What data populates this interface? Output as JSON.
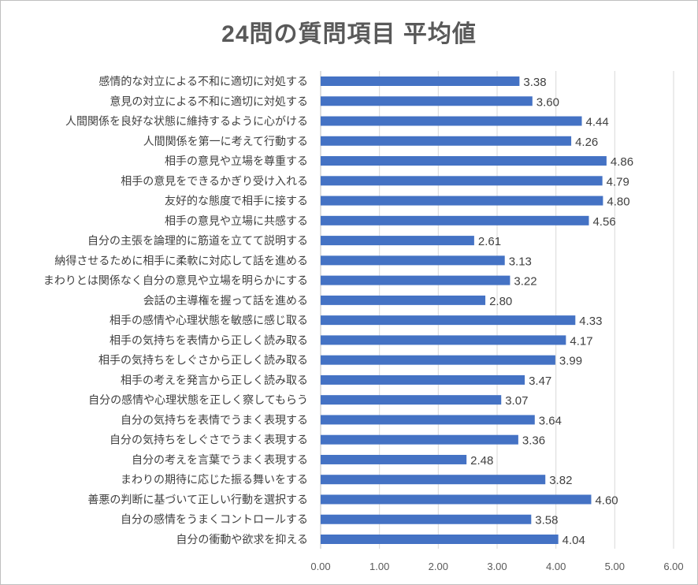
{
  "chart_data": {
    "type": "bar",
    "orientation": "horizontal",
    "title": "24問の質問項目 平均値",
    "xlabel": "",
    "ylabel": "",
    "xlim": [
      0,
      6
    ],
    "xticks": [
      "0.00",
      "1.00",
      "2.00",
      "3.00",
      "4.00",
      "5.00",
      "6.00"
    ],
    "grid": true,
    "bar_color": "#4472C4",
    "categories": [
      "感情的な対立による不和に適切に対処する",
      "意見の対立による不和に適切に対処する",
      "人間関係を良好な状態に維持するように心がける",
      "人間関係を第一に考えて行動する",
      "相手の意見や立場を尊重する",
      "相手の意見をできるかぎり受け入れる",
      "友好的な態度で相手に接する",
      "相手の意見や立場に共感する",
      "自分の主張を論理的に筋道を立てて説明する",
      "納得させるために相手に柔軟に対応して話を進める",
      "まわりとは関係なく自分の意見や立場を明らかにする",
      "会話の主導権を握って話を進める",
      "相手の感情や心理状態を敏感に感じ取る",
      "相手の気持ちを表情から正しく読み取る",
      "相手の気持ちをしぐさから正しく読み取る",
      "相手の考えを発言から正しく読み取る",
      "自分の感情や心理状態を正しく察してもらう",
      "自分の気持ちを表情でうまく表現する",
      "自分の気持ちをしぐさでうまく表現する",
      "自分の考えを言葉でうまく表現する",
      "まわりの期待に応じた振る舞いをする",
      "善悪の判断に基づいて正しい行動を選択する",
      "自分の感情をうまくコントロールする",
      "自分の衝動や欲求を抑える"
    ],
    "values": [
      3.38,
      3.6,
      4.44,
      4.26,
      4.86,
      4.79,
      4.8,
      4.56,
      2.61,
      3.13,
      3.22,
      2.8,
      4.33,
      4.17,
      3.99,
      3.47,
      3.07,
      3.64,
      3.36,
      2.48,
      3.82,
      4.6,
      3.58,
      4.04
    ],
    "value_labels": [
      "3.38",
      "3.60",
      "4.44",
      "4.26",
      "4.86",
      "4.79",
      "4.80",
      "4.56",
      "2.61",
      "3.13",
      "3.22",
      "2.80",
      "4.33",
      "4.17",
      "3.99",
      "3.47",
      "3.07",
      "3.64",
      "3.36",
      "2.48",
      "3.82",
      "4.60",
      "3.58",
      "4.04"
    ]
  }
}
